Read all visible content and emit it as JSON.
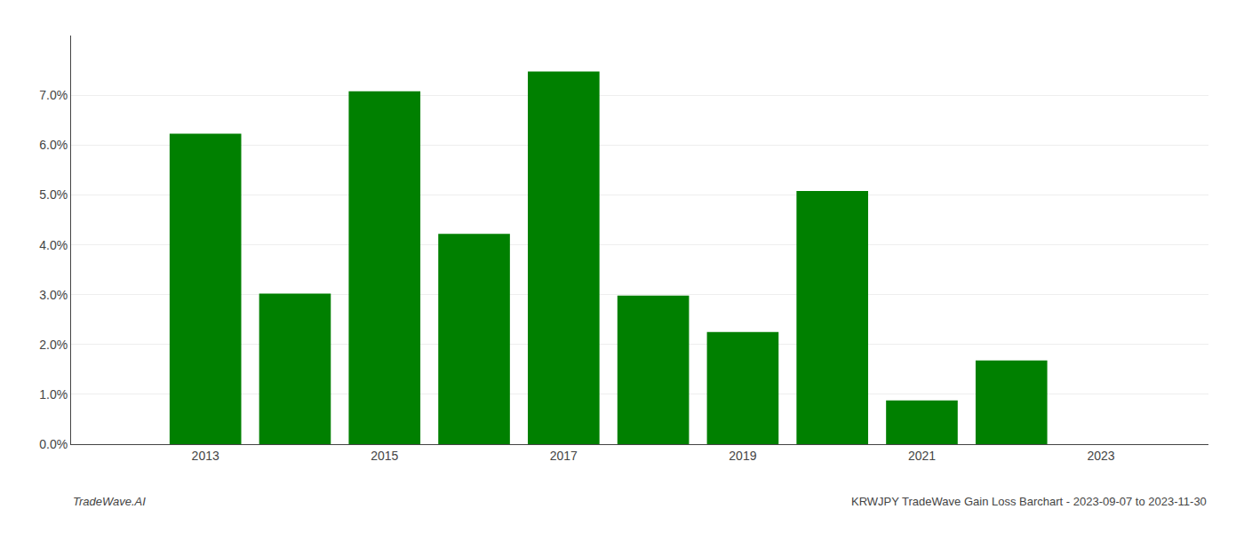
{
  "chart_data": {
    "type": "bar",
    "x": [
      2013,
      2014,
      2015,
      2016,
      2017,
      2018,
      2019,
      2020,
      2021,
      2022,
      2023
    ],
    "values": [
      0.0623,
      0.0302,
      0.0708,
      0.0422,
      0.0748,
      0.0298,
      0.0225,
      0.0508,
      0.0088,
      0.0168,
      0.0
    ],
    "color": "#008000",
    "xlim": [
      2011.5,
      2024.2
    ],
    "xticks": [
      2013,
      2015,
      2017,
      2019,
      2021,
      2023
    ],
    "ylim": [
      0.0,
      0.082
    ],
    "yticks": [
      {
        "value": 0.0,
        "label": "0.0%"
      },
      {
        "value": 0.01,
        "label": "1.0%"
      },
      {
        "value": 0.02,
        "label": "2.0%"
      },
      {
        "value": 0.03,
        "label": "3.0%"
      },
      {
        "value": 0.04,
        "label": "4.0%"
      },
      {
        "value": 0.05,
        "label": "5.0%"
      },
      {
        "value": 0.06,
        "label": "6.0%"
      },
      {
        "value": 0.07,
        "label": "7.0%"
      }
    ],
    "grid": true,
    "annotations": [
      "TradeWave.AI",
      "KRWJPY TradeWave Gain Loss Barchart - 2023-09-07 to 2023-11-30"
    ]
  }
}
